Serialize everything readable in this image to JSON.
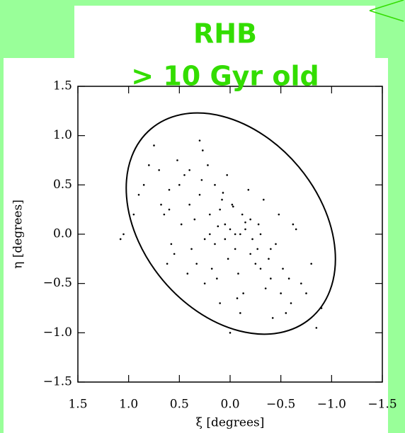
{
  "chart_data": {
    "type": "scatter",
    "title": "RHB",
    "subtitle": "> 10 Gyr old",
    "x_label": "ξ [degrees]",
    "y_label": "η [degrees]",
    "color": "#000000",
    "xlim": [
      1.5,
      -1.5
    ],
    "ylim": [
      -1.5,
      1.5
    ],
    "xticks": [
      {
        "value": 1.5,
        "label": "1.5"
      },
      {
        "value": 1,
        "label": "1.0"
      },
      {
        "value": 0.5,
        "label": "0.5"
      },
      {
        "value": 0,
        "label": "0.0"
      },
      {
        "value": -0.5,
        "label": "−0.5"
      },
      {
        "value": -1,
        "label": "−1.0"
      },
      {
        "value": -1.5,
        "label": "−1.5"
      }
    ],
    "yticks": [
      {
        "value": -1.5,
        "label": "−1.5"
      },
      {
        "value": -1,
        "label": "−1.0"
      },
      {
        "value": -0.5,
        "label": "−0.5"
      },
      {
        "value": 0,
        "label": "0.0"
      },
      {
        "value": 0.5,
        "label": "0.5"
      },
      {
        "value": 1,
        "label": "1.0"
      },
      {
        "value": 1.5,
        "label": "1.5"
      }
    ],
    "x": [
      0.05,
      -0.1,
      0.2,
      -0.25,
      0.3,
      0.0,
      0.15,
      -0.05,
      0.4,
      -0.4,
      0.1,
      -0.2,
      0.25,
      -0.3,
      0.5,
      -0.5,
      0.35,
      -0.15,
      0.02,
      0.08,
      -0.08,
      0.12,
      -0.12,
      0.45,
      -0.45,
      0.6,
      -0.6,
      0.7,
      -0.7,
      0.55,
      -0.35,
      0.28,
      -0.02,
      0.18,
      -0.22,
      0.38,
      -0.28,
      0.65,
      -0.55,
      0.8,
      -0.8,
      0.9,
      -0.9,
      1.05,
      1.08,
      0.75,
      -0.65,
      0.22,
      -0.18,
      0.03,
      -0.07,
      0.33,
      -0.38,
      0.48,
      -0.42,
      0.58,
      -0.48,
      0.68,
      -0.58,
      0.13,
      -0.13,
      0.07,
      -0.03,
      0.27,
      -0.27,
      0.42,
      -0.33,
      0.52,
      -0.52,
      0.62,
      -0.62,
      0.85,
      -0.75,
      0.95,
      -0.85,
      0.1,
      -0.3,
      0.3,
      -0.1,
      0.0,
      0.2,
      -0.2,
      0.4,
      -0.4,
      0.6,
      -0.05,
      0.05,
      0.15,
      -0.15,
      0.25
    ],
    "y": [
      0.1,
      0.0,
      0.2,
      -0.3,
      0.4,
      0.05,
      -0.1,
      -0.15,
      0.3,
      -0.45,
      0.25,
      -0.2,
      -0.05,
      -0.35,
      0.5,
      -0.6,
      0.15,
      0.12,
      -0.25,
      0.35,
      -0.4,
      0.08,
      0.2,
      0.6,
      -0.1,
      0.45,
      -0.7,
      0.65,
      -0.5,
      -0.2,
      -0.55,
      0.55,
      0.3,
      -0.35,
      -0.05,
      -0.15,
      0.1,
      0.2,
      -0.8,
      0.7,
      -0.3,
      0.4,
      -0.75,
      0.0,
      -0.05,
      0.9,
      0.05,
      0.7,
      0.45,
      0.6,
      -0.65,
      -0.3,
      -0.25,
      0.1,
      -0.85,
      -0.1,
      0.2,
      0.3,
      -0.45,
      -0.45,
      -0.6,
      0.42,
      0.28,
      0.85,
      -0.15,
      -0.4,
      0.35,
      0.75,
      -0.35,
      -0.3,
      0.1,
      0.5,
      -0.6,
      0.2,
      -0.95,
      -0.7,
      0.0,
      0.95,
      -0.8,
      -1.0,
      0.0,
      0.15,
      0.65,
      -0.15,
      0.25,
      0.0,
      -0.05,
      0.5,
      0.05,
      -0.5
    ]
  }
}
